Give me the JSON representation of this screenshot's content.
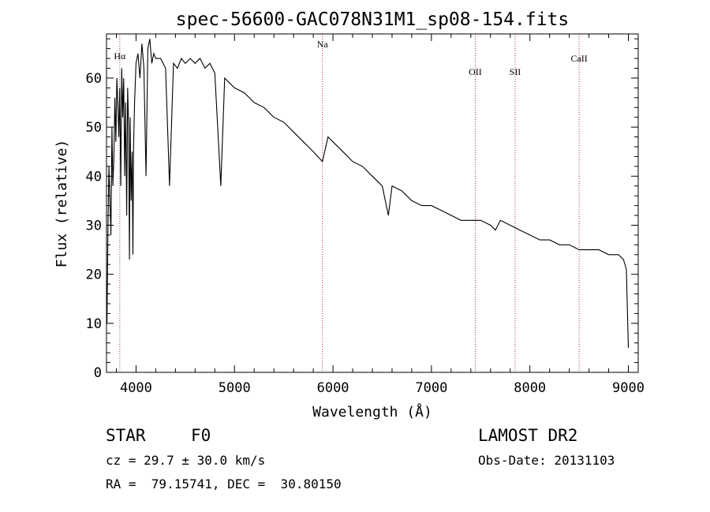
{
  "chart_data": {
    "type": "line",
    "title": "spec-56600-GAC078N31M1_sp08-154.fits",
    "xlabel": "Wavelength (Å)",
    "ylabel": "Flux (relative)",
    "xlim": [
      3700,
      9100
    ],
    "ylim": [
      0,
      69
    ],
    "x_ticks": [
      "4000",
      "5000",
      "6000",
      "7000",
      "8000",
      "9000"
    ],
    "x_tick_values": [
      4000,
      5000,
      6000,
      7000,
      8000,
      9000
    ],
    "y_ticks": [
      "0",
      "10",
      "20",
      "30",
      "40",
      "50",
      "60"
    ],
    "y_tick_values": [
      0,
      10,
      20,
      30,
      40,
      50,
      60
    ],
    "grid": false,
    "line_color": "#000000",
    "marker_color": "#b03030",
    "spectral_lines": [
      {
        "label": "Hα",
        "x": 3835
      },
      {
        "label": "Na",
        "x": 5893
      },
      {
        "label": "OII",
        "x": 7445
      },
      {
        "label": "SII",
        "x": 7850
      },
      {
        "label": "CaII",
        "x": 8500
      }
    ],
    "series": [
      {
        "x": [
          3705,
          3715,
          3725,
          3735,
          3745,
          3755,
          3765,
          3775,
          3785,
          3795,
          3805,
          3815,
          3825,
          3835,
          3845,
          3855,
          3865,
          3875,
          3885,
          3895,
          3905,
          3915,
          3925,
          3933,
          3940,
          3950,
          3960,
          3968,
          3975,
          3985,
          4000,
          4020,
          4040,
          4060,
          4080,
          4101,
          4120,
          4140,
          4160,
          4180,
          4200,
          4250,
          4300,
          4340,
          4380,
          4420,
          4460,
          4500,
          4550,
          4600,
          4650,
          4700,
          4750,
          4800,
          4861,
          4900,
          4950,
          5000,
          5100,
          5200,
          5300,
          5400,
          5500,
          5600,
          5700,
          5800,
          5893,
          5950,
          6000,
          6100,
          6200,
          6300,
          6400,
          6500,
          6563,
          6600,
          6700,
          6800,
          6900,
          7000,
          7100,
          7200,
          7300,
          7400,
          7500,
          7600,
          7650,
          7700,
          7800,
          7900,
          8000,
          8100,
          8200,
          8300,
          8400,
          8500,
          8600,
          8700,
          8800,
          8900,
          8950,
          8980,
          9000
        ],
        "y": [
          10,
          30,
          42,
          35,
          28,
          50,
          38,
          44,
          56,
          47,
          60,
          55,
          48,
          58,
          38,
          62,
          52,
          60,
          40,
          55,
          32,
          58,
          50,
          23,
          52,
          35,
          45,
          24,
          46,
          55,
          63,
          65,
          60,
          67,
          62,
          40,
          66,
          68,
          63,
          65,
          64,
          64,
          62,
          38,
          63,
          62,
          64,
          63,
          64,
          63,
          64,
          62,
          63,
          61,
          38,
          60,
          59,
          58,
          57,
          55,
          54,
          52,
          51,
          49,
          47,
          45,
          43,
          48,
          47,
          45,
          43,
          42,
          40,
          38,
          32,
          38,
          37,
          35,
          34,
          34,
          33,
          32,
          31,
          31,
          31,
          30,
          29,
          31,
          30,
          29,
          28,
          27,
          27,
          26,
          26,
          25,
          25,
          25,
          24,
          24,
          23,
          21,
          5
        ]
      }
    ]
  },
  "info": {
    "object_class": "STAR",
    "subclass": "F0",
    "survey": "LAMOST DR2",
    "velocity": "cz = 29.7 ± 30.0 km/s",
    "obs_date": "Obs-Date: 20131103",
    "coords": "RA =  79.15741, DEC =  30.80150"
  }
}
